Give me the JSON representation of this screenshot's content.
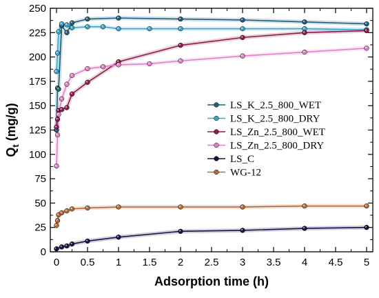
{
  "chart_data": {
    "type": "line",
    "xlabel": "Adsorption time (h)",
    "ylabel_main": "Q",
    "ylabel_sub": "t",
    "ylabel_unit": " (mg/g)",
    "xlim": [
      -0.1,
      5.1
    ],
    "ylim": [
      0,
      250
    ],
    "xticks": [
      "0",
      "0.5",
      "1",
      "1.5",
      "2",
      "2.5",
      "3",
      "3.5",
      "4",
      "4.5",
      "5"
    ],
    "yticks": [
      "0",
      "25",
      "50",
      "75",
      "100",
      "125",
      "150",
      "175",
      "200",
      "225",
      "250"
    ],
    "grid": false,
    "legend_position": "right-center",
    "series": [
      {
        "name": "LS_K_2.5_800_WET",
        "color": "#1f5e7a",
        "x": [
          0,
          0.0167,
          0.0333,
          0.0833,
          0.1667,
          0.25,
          0.5,
          1,
          2,
          3,
          4,
          5
        ],
        "y": [
          125,
          168,
          167,
          232,
          225,
          235,
          239,
          240,
          239,
          238,
          236,
          234
        ]
      },
      {
        "name": "LS_K_2.5_800_DRY",
        "color": "#3aa6c8",
        "x": [
          0,
          0.0167,
          0.0333,
          0.0833,
          0.1667,
          0.25,
          0.5,
          0.75,
          1,
          1.5,
          2,
          3,
          4,
          5
        ],
        "y": [
          185,
          204,
          226,
          234,
          233,
          230,
          231,
          231,
          229,
          229,
          229,
          229,
          229,
          228
        ]
      },
      {
        "name": "LS_Zn_2.5_800_WET",
        "color": "#8c1b4e",
        "x": [
          0,
          0.0167,
          0.0333,
          0.0833,
          0.1667,
          0.25,
          0.5,
          1,
          2,
          3,
          4,
          5
        ],
        "y": [
          128,
          136,
          145,
          146,
          148,
          162,
          174,
          195,
          212,
          220,
          225,
          227
        ]
      },
      {
        "name": "LS_Zn_2.5_800_DRY",
        "color": "#e080c8",
        "x": [
          0,
          0.0167,
          0.0333,
          0.0833,
          0.1667,
          0.25,
          0.5,
          0.75,
          1,
          1.5,
          2,
          3,
          4,
          5
        ],
        "y": [
          88,
          120,
          141,
          157,
          172,
          181,
          188,
          190,
          192,
          193,
          196,
          201,
          205,
          209
        ]
      },
      {
        "name": "LS_C",
        "color": "#141447",
        "x": [
          0,
          0.0833,
          0.1667,
          0.25,
          0.5,
          1,
          2,
          3,
          4,
          5
        ],
        "y": [
          3,
          5,
          6,
          8,
          11,
          15,
          21,
          22,
          24,
          25
        ]
      },
      {
        "name": "WG-12",
        "color": "#b36a3a",
        "x": [
          0,
          0.0167,
          0.0333,
          0.0833,
          0.1667,
          0.25,
          0.5,
          1,
          2,
          3,
          4,
          5
        ],
        "y": [
          27,
          32,
          38,
          40,
          42,
          44,
          45,
          46,
          46,
          46,
          47,
          47
        ]
      }
    ]
  }
}
